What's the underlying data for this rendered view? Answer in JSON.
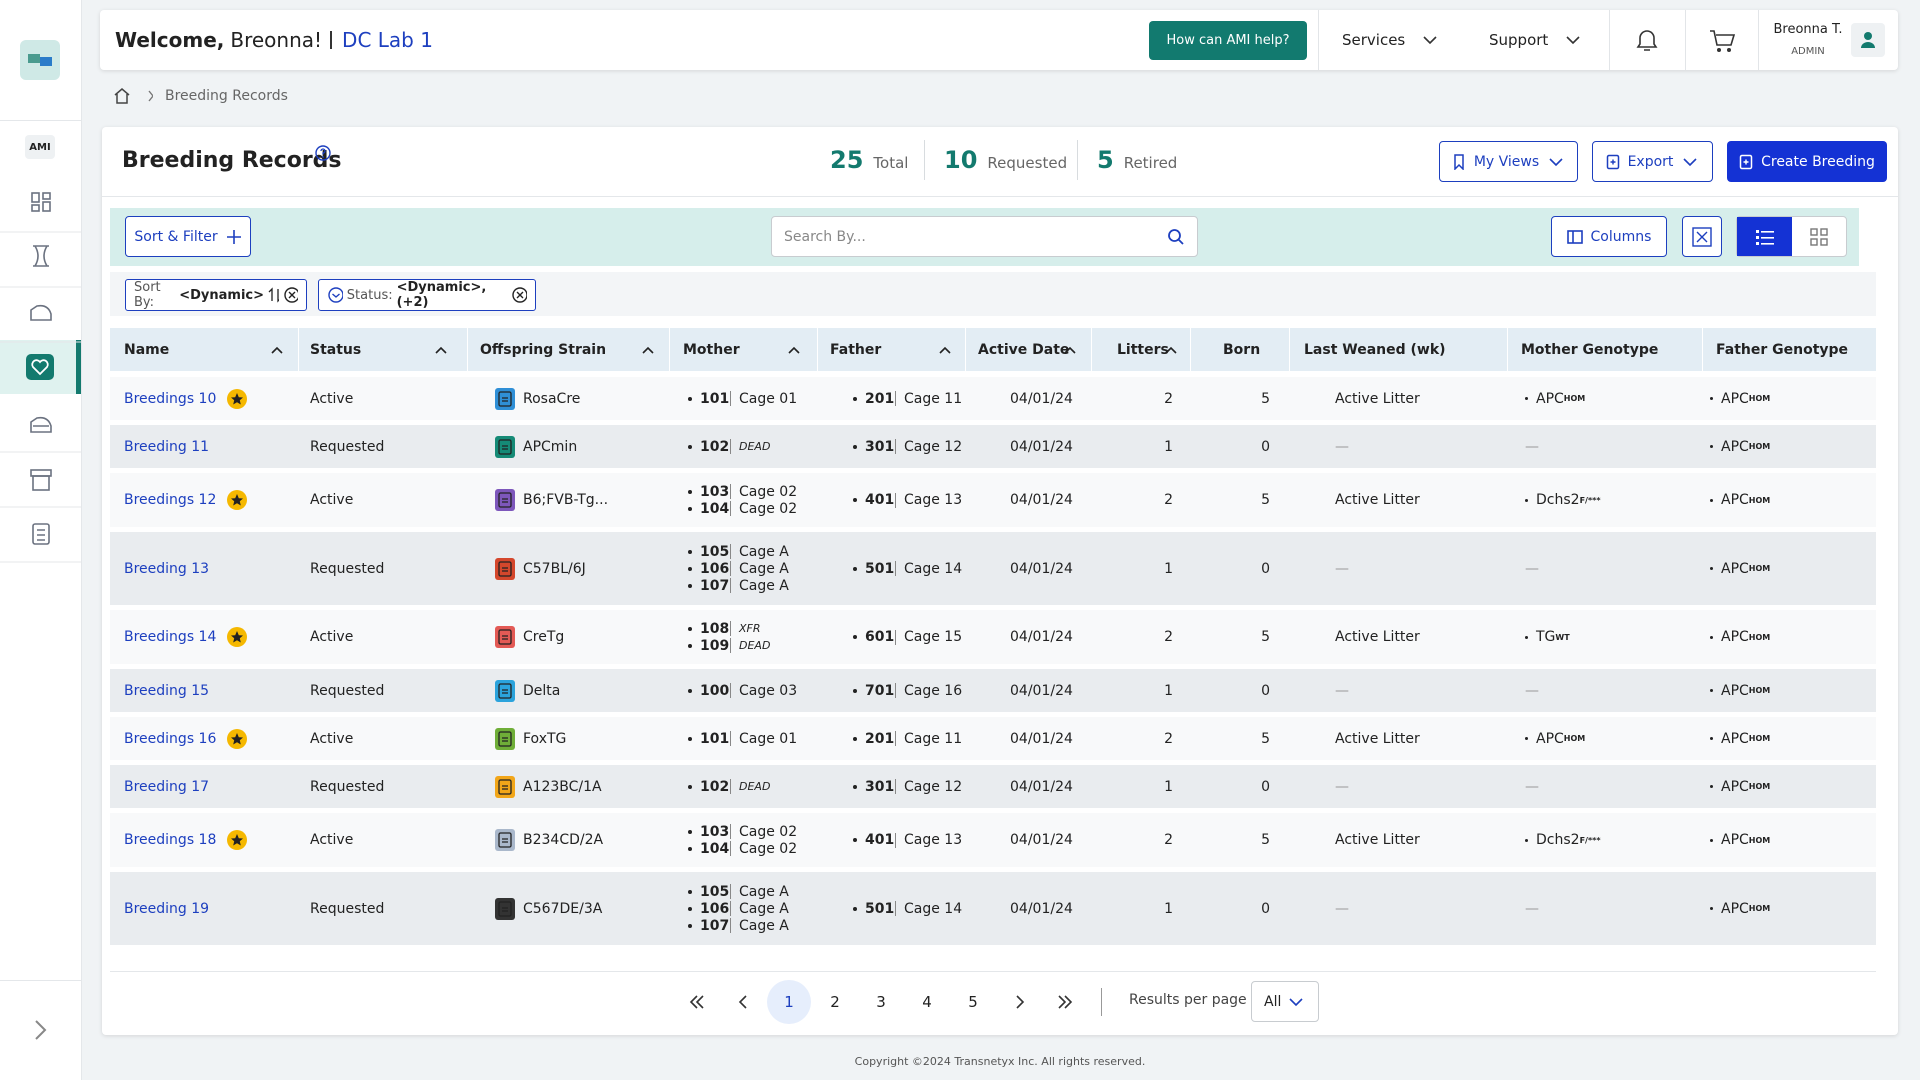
{
  "header": {
    "welcome": "Welcome,",
    "user_first": "Breonna!",
    "lab": "DC Lab 1",
    "help": "How can AMI help?",
    "nav": [
      "Services",
      "Support"
    ],
    "user_name": "Breonna T.",
    "user_role": "ADMIN"
  },
  "sidebar": {
    "badge": "AMI"
  },
  "breadcrumb": {
    "current": "Breeding Records"
  },
  "page": {
    "title": "Breeding Records",
    "stats": [
      {
        "value": 25,
        "label": "Total"
      },
      {
        "value": 10,
        "label": "Requested"
      },
      {
        "value": 5,
        "label": "Retired"
      }
    ],
    "buttons": [
      "My Views",
      "Export",
      "Create Breeding"
    ]
  },
  "toolbar": {
    "sort_filter": "Sort & Filter",
    "search_placeholder": "Search By...",
    "columns": "Columns"
  },
  "filters": [
    {
      "label": "Sort By:",
      "value": "<Dynamic>"
    },
    {
      "label": "Status:",
      "value": "<Dynamic>, (+2)"
    }
  ],
  "table": {
    "columns": [
      "Name",
      "Status",
      "Offspring Strain",
      "Mother",
      "Father",
      "Active Date",
      "Litters",
      "Born",
      "Last Weaned (wk)",
      "Mother Genotype",
      "Father Genotype"
    ],
    "rows": [
      {
        "name": "Breedings 10",
        "starred": true,
        "status": "Active",
        "strain": "RosaCre",
        "strain_color": "#2f8fd6",
        "mothers": [
          {
            "id": "101",
            "cage": "Cage 01"
          }
        ],
        "fathers": [
          {
            "id": "201",
            "cage": "Cage 11"
          }
        ],
        "active_date": "04/01/24",
        "litters": 2,
        "born": 5,
        "last_weaned": "Active Litter",
        "mother_genotype": {
          "base": "APC",
          "sup": "HOM"
        },
        "father_genotype": {
          "base": "APC",
          "sup": "HOM"
        }
      },
      {
        "name": "Breeding 11",
        "starred": false,
        "status": "Requested",
        "strain": "APCmin",
        "strain_color": "#158a76",
        "mothers": [
          {
            "id": "102",
            "cage": "DEAD",
            "italic": true
          }
        ],
        "fathers": [
          {
            "id": "301",
            "cage": "Cage 12"
          }
        ],
        "active_date": "04/01/24",
        "litters": 1,
        "born": 0,
        "last_weaned": "—",
        "mother_genotype": "—",
        "father_genotype": {
          "base": "APC",
          "sup": "HOM"
        }
      },
      {
        "name": "Breedings 12",
        "starred": true,
        "status": "Active",
        "strain": "B6;FVB-Tg...",
        "strain_color": "#7d57bb",
        "mothers": [
          {
            "id": "103",
            "cage": "Cage 02"
          },
          {
            "id": "104",
            "cage": "Cage 02"
          }
        ],
        "fathers": [
          {
            "id": "401",
            "cage": "Cage 13"
          }
        ],
        "active_date": "04/01/24",
        "litters": 2,
        "born": 5,
        "last_weaned": "Active Litter",
        "mother_genotype": {
          "base": "Dchs2",
          "sup": "F/***"
        },
        "father_genotype": {
          "base": "APC",
          "sup": "HOM"
        }
      },
      {
        "name": "Breeding 13",
        "starred": false,
        "status": "Requested",
        "strain": "C57BL/6J",
        "strain_color": "#d4472c",
        "mothers": [
          {
            "id": "105",
            "cage": "Cage A"
          },
          {
            "id": "106",
            "cage": "Cage A"
          },
          {
            "id": "107",
            "cage": "Cage A"
          }
        ],
        "fathers": [
          {
            "id": "501",
            "cage": "Cage 14"
          }
        ],
        "active_date": "04/01/24",
        "litters": 1,
        "born": 0,
        "last_weaned": "—",
        "mother_genotype": "—",
        "father_genotype": {
          "base": "APC",
          "sup": "HOM"
        }
      },
      {
        "name": "Breedings 14",
        "starred": true,
        "status": "Active",
        "strain": "CreTg",
        "strain_color": "#e35a55",
        "mothers": [
          {
            "id": "108",
            "cage": "XFR",
            "italic": true
          },
          {
            "id": "109",
            "cage": "DEAD",
            "italic": true
          }
        ],
        "fathers": [
          {
            "id": "601",
            "cage": "Cage 15"
          }
        ],
        "active_date": "04/01/24",
        "litters": 2,
        "born": 5,
        "last_weaned": "Active Litter",
        "mother_genotype": {
          "base": "TG",
          "sup": "WT"
        },
        "father_genotype": {
          "base": "APC",
          "sup": "HOM"
        }
      },
      {
        "name": "Breeding 15",
        "starred": false,
        "status": "Requested",
        "strain": "Delta",
        "strain_color": "#2ba3dc",
        "mothers": [
          {
            "id": "100",
            "cage": "Cage 03"
          }
        ],
        "fathers": [
          {
            "id": "701",
            "cage": "Cage 16"
          }
        ],
        "active_date": "04/01/24",
        "litters": 1,
        "born": 0,
        "last_weaned": "—",
        "mother_genotype": "—",
        "father_genotype": {
          "base": "APC",
          "sup": "HOM"
        }
      },
      {
        "name": "Breedings 16",
        "starred": true,
        "status": "Active",
        "strain": "FoxTG",
        "strain_color": "#6fae38",
        "mothers": [
          {
            "id": "101",
            "cage": "Cage 01"
          }
        ],
        "fathers": [
          {
            "id": "201",
            "cage": "Cage 11"
          }
        ],
        "active_date": "04/01/24",
        "litters": 2,
        "born": 5,
        "last_weaned": "Active Litter",
        "mother_genotype": {
          "base": "APC",
          "sup": "HOM"
        },
        "father_genotype": {
          "base": "APC",
          "sup": "HOM"
        }
      },
      {
        "name": "Breeding 17",
        "starred": false,
        "status": "Requested",
        "strain": "A123BC/1A",
        "strain_color": "#f2a619",
        "mothers": [
          {
            "id": "102",
            "cage": "DEAD",
            "italic": true
          }
        ],
        "fathers": [
          {
            "id": "301",
            "cage": "Cage 12"
          }
        ],
        "active_date": "04/01/24",
        "litters": 1,
        "born": 0,
        "last_weaned": "—",
        "mother_genotype": "—",
        "father_genotype": {
          "base": "APC",
          "sup": "HOM"
        }
      },
      {
        "name": "Breedings 18",
        "starred": true,
        "status": "Active",
        "strain": "B234CD/2A",
        "strain_color": "#aab8cb",
        "mothers": [
          {
            "id": "103",
            "cage": "Cage 02"
          },
          {
            "id": "104",
            "cage": "Cage 02"
          }
        ],
        "fathers": [
          {
            "id": "401",
            "cage": "Cage 13"
          }
        ],
        "active_date": "04/01/24",
        "litters": 2,
        "born": 5,
        "last_weaned": "Active Litter",
        "mother_genotype": {
          "base": "Dchs2",
          "sup": "F/***"
        },
        "father_genotype": {
          "base": "APC",
          "sup": "HOM"
        }
      },
      {
        "name": "Breeding 19",
        "starred": false,
        "status": "Requested",
        "strain": "C567DE/3A",
        "strain_color": "#333333",
        "mothers": [
          {
            "id": "105",
            "cage": "Cage A"
          },
          {
            "id": "106",
            "cage": "Cage A"
          },
          {
            "id": "107",
            "cage": "Cage A"
          }
        ],
        "fathers": [
          {
            "id": "501",
            "cage": "Cage 14"
          }
        ],
        "active_date": "04/01/24",
        "litters": 1,
        "born": 0,
        "last_weaned": "—",
        "mother_genotype": "—",
        "father_genotype": {
          "base": "APC",
          "sup": "HOM"
        }
      }
    ]
  },
  "pagination": {
    "pages": [
      1,
      2,
      3,
      4,
      5
    ],
    "current": 1,
    "per_page_label": "Results per page",
    "per_page_value": "All"
  },
  "footer": {
    "copyright": "Copyright ©2024 Transnetyx Inc. All rights reserved."
  }
}
